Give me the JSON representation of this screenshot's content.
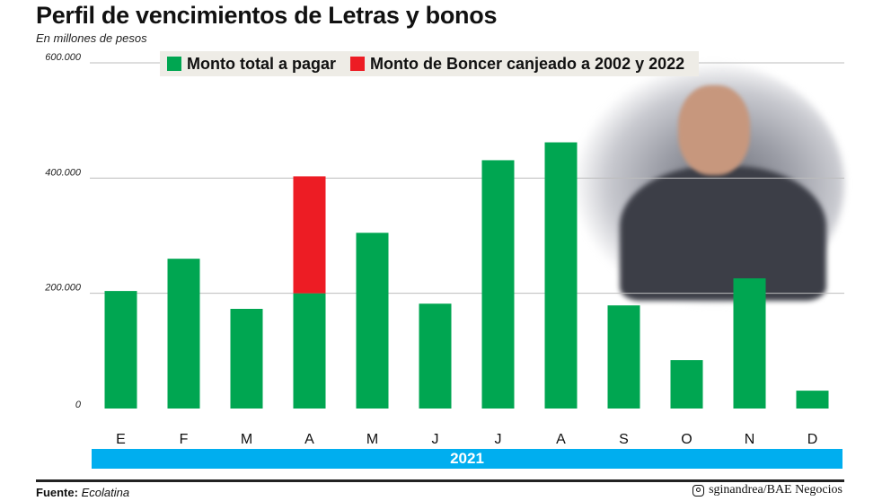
{
  "title": "Perfil de vencimientos de Letras y bonos",
  "subtitle": "En millones de pesos",
  "footer": {
    "source_label": "Fuente:",
    "source": "Ecolatina",
    "credit": "sginandrea/BAE Negocios",
    "credit_icon": "instagram-icon"
  },
  "colors": {
    "green": "#00a651",
    "red": "#ed1c24",
    "year_bar": "#00aeef"
  },
  "chart_data": {
    "type": "bar",
    "stacked": true,
    "title": "Perfil de vencimientos de Letras y bonos",
    "ylabel": "En millones de pesos",
    "xlabel": "2021",
    "categories": [
      "E",
      "F",
      "M",
      "A",
      "M",
      "J",
      "J",
      "A",
      "S",
      "O",
      "N",
      "D"
    ],
    "series": [
      {
        "name": "Monto total a pagar",
        "color": "#00a651",
        "values": [
          204000,
          260000,
          173000,
          200000,
          305000,
          182000,
          431000,
          462000,
          179000,
          84000,
          226000,
          31000
        ]
      },
      {
        "name": "Monto de Boncer canjeado a 2002 y 2022",
        "color": "#ed1c24",
        "values": [
          0,
          0,
          0,
          203000,
          0,
          0,
          0,
          0,
          0,
          0,
          0,
          0
        ]
      }
    ],
    "yticks": [
      "0",
      "200.000",
      "400.000",
      "600.000"
    ],
    "ytick_values": [
      0,
      200000,
      400000,
      600000
    ],
    "ylim": [
      0,
      600000
    ],
    "grid": true,
    "legend": "top-center"
  }
}
